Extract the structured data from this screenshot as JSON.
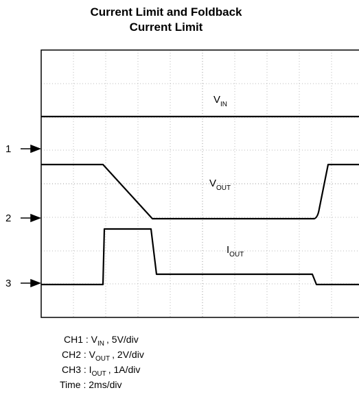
{
  "title": [
    "Current Limit and Foldback",
    "Current Limit"
  ],
  "trace_labels": [
    {
      "main": "V",
      "sub": "IN"
    },
    {
      "main": "V",
      "sub": "OUT"
    },
    {
      "main": "I",
      "sub": "OUT"
    }
  ],
  "channel_markers": [
    "1",
    "2",
    "3"
  ],
  "legend": [
    {
      "prefix": "CH1 : V",
      "sub": "IN",
      "suffix": ", 5V/div"
    },
    {
      "prefix": "CH2 : V",
      "sub": "OUT",
      "suffix": ", 2V/div"
    },
    {
      "prefix": "CH3 : I",
      "sub": "OUT",
      "suffix": ", 1A/div"
    }
  ],
  "time": "Time : 2ms/div"
}
